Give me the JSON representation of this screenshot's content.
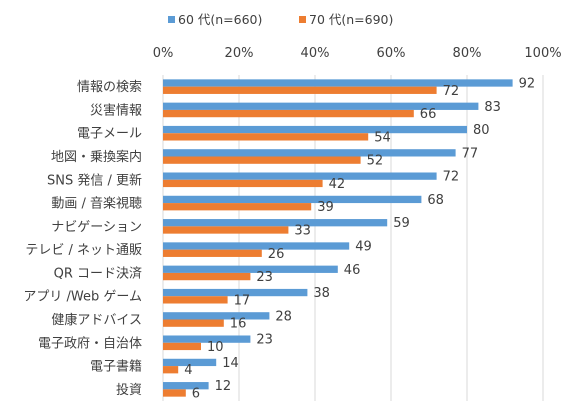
{
  "chart_data": {
    "type": "bar",
    "orientation": "horizontal",
    "categories": [
      "情報の検索",
      "災害情報",
      "電子メール",
      "地図・乗換案内",
      "SNS 発信 / 更新",
      "動画 / 音楽視聴",
      "ナビゲーション",
      "テレビ / ネット通販",
      "QR コード決済",
      "アプリ /Web ゲーム",
      "健康アドバイス",
      "電子政府・自治体",
      "電子書籍",
      "投資"
    ],
    "series": [
      {
        "name": "60 代(n=660)",
        "color": "#5b9bd5",
        "values": [
          92,
          83,
          80,
          77,
          72,
          68,
          59,
          49,
          46,
          38,
          28,
          23,
          14,
          12
        ]
      },
      {
        "name": "70 代(n=690)",
        "color": "#ed7d31",
        "values": [
          72,
          66,
          54,
          52,
          42,
          39,
          33,
          26,
          23,
          17,
          16,
          10,
          4,
          6
        ]
      }
    ],
    "x_ticks": [
      "0%",
      "20%",
      "40%",
      "60%",
      "80%",
      "100%"
    ],
    "xlim": [
      0,
      100
    ],
    "grid": true,
    "legend_position": "top"
  }
}
